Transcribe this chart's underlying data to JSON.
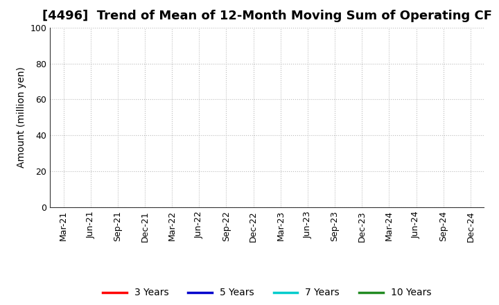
{
  "title": "[4496]  Trend of Mean of 12-Month Moving Sum of Operating CF",
  "ylabel": "Amount (million yen)",
  "ylim": [
    0,
    100
  ],
  "yticks": [
    0,
    20,
    40,
    60,
    80,
    100
  ],
  "x_labels": [
    "Mar-21",
    "Jun-21",
    "Sep-21",
    "Dec-21",
    "Mar-22",
    "Jun-22",
    "Sep-22",
    "Dec-22",
    "Mar-23",
    "Jun-23",
    "Sep-23",
    "Dec-23",
    "Mar-24",
    "Jun-24",
    "Sep-24",
    "Dec-24"
  ],
  "legend_entries": [
    {
      "label": "3 Years",
      "color": "#FF0000"
    },
    {
      "label": "5 Years",
      "color": "#0000CC"
    },
    {
      "label": "7 Years",
      "color": "#00CCCC"
    },
    {
      "label": "10 Years",
      "color": "#228B22"
    }
  ],
  "background_color": "#FFFFFF",
  "grid_color": "#BBBBBB",
  "title_fontsize": 13,
  "axis_label_fontsize": 10,
  "tick_fontsize": 9,
  "legend_fontsize": 10
}
